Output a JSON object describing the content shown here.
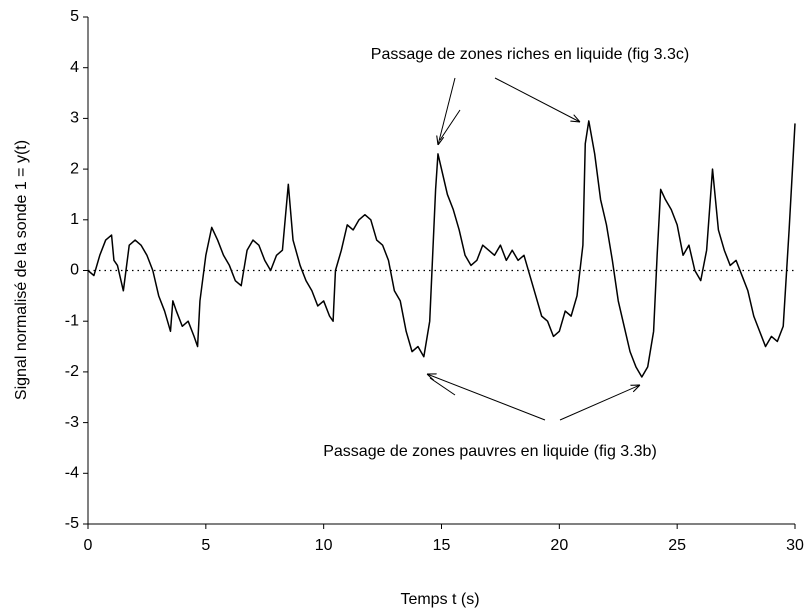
{
  "chart_data": {
    "type": "line",
    "x_label": "Temps t (s)",
    "y_label": "Signal normalisé de la sonde 1 = y(t)",
    "annotations": [
      "Passage de zones riches en liquide (fig 3.3c)",
      "Passage de zones pauvres en liquide (fig 3.3b)"
    ],
    "reference_line": 0,
    "xlim": [
      0,
      30
    ],
    "xticks": [
      0,
      5,
      10,
      15,
      20,
      25,
      30
    ],
    "ylim": [
      -5,
      5
    ],
    "yticks": [
      -5,
      -4,
      -3,
      -2,
      -1,
      0,
      1,
      2,
      3,
      4,
      5
    ],
    "series": [
      {
        "color": "#000000",
        "x": [
          0,
          0.25,
          0.5,
          0.75,
          1.0,
          1.1,
          1.25,
          1.5,
          1.75,
          2.0,
          2.25,
          2.5,
          2.75,
          3.0,
          3.25,
          3.5,
          3.6,
          3.75,
          4.0,
          4.25,
          4.5,
          4.65,
          4.75,
          5.0,
          5.25,
          5.5,
          5.75,
          6.0,
          6.25,
          6.5,
          6.75,
          7.0,
          7.25,
          7.5,
          7.75,
          8.0,
          8.25,
          8.5,
          8.7,
          9.0,
          9.25,
          9.5,
          9.75,
          10.0,
          10.25,
          10.4,
          10.5,
          10.75,
          11.0,
          11.25,
          11.5,
          11.75,
          12.0,
          12.25,
          12.5,
          12.75,
          13.0,
          13.25,
          13.5,
          13.75,
          14.0,
          14.25,
          14.5,
          14.75,
          14.85,
          15.0,
          15.25,
          15.5,
          15.75,
          16.0,
          16.25,
          16.5,
          16.75,
          17.0,
          17.25,
          17.5,
          17.75,
          18.0,
          18.25,
          18.5,
          18.75,
          19.0,
          19.25,
          19.5,
          19.75,
          20.0,
          20.25,
          20.5,
          20.75,
          21.0,
          21.1,
          21.25,
          21.5,
          21.75,
          22.0,
          22.25,
          22.5,
          22.75,
          23.0,
          23.25,
          23.5,
          23.75,
          24.0,
          24.15,
          24.3,
          24.5,
          24.75,
          25.0,
          25.25,
          25.5,
          25.75,
          26.0,
          26.25,
          26.5,
          26.75,
          27.0,
          27.25,
          27.5,
          27.75,
          28.0,
          28.25,
          28.5,
          28.75,
          29.0,
          29.25,
          29.5,
          29.75,
          30.0
        ],
        "values": [
          0,
          -0.1,
          0.3,
          0.6,
          0.7,
          0.2,
          0.1,
          -0.4,
          0.5,
          0.6,
          0.5,
          0.3,
          0,
          -0.5,
          -0.8,
          -1.2,
          -0.6,
          -0.8,
          -1.1,
          -1.0,
          -1.3,
          -1.5,
          -0.6,
          0.3,
          0.85,
          0.6,
          0.3,
          0.1,
          -0.2,
          -0.3,
          0.4,
          0.6,
          0.5,
          0.2,
          0,
          0.3,
          0.4,
          1.7,
          0.6,
          0.1,
          -0.2,
          -0.4,
          -0.7,
          -0.6,
          -0.9,
          -1.0,
          0,
          0.4,
          0.9,
          0.8,
          1.0,
          1.1,
          1.0,
          0.6,
          0.5,
          0.2,
          -0.4,
          -0.6,
          -1.2,
          -1.6,
          -1.5,
          -1.7,
          -1.0,
          1.6,
          2.3,
          2.0,
          1.5,
          1.2,
          0.8,
          0.3,
          0.1,
          0.2,
          0.5,
          0.4,
          0.3,
          0.5,
          0.2,
          0.4,
          0.2,
          0.3,
          -0.1,
          -0.5,
          -0.9,
          -1.0,
          -1.3,
          -1.2,
          -0.8,
          -0.9,
          -0.5,
          0.5,
          2.5,
          2.95,
          2.3,
          1.4,
          0.9,
          0.2,
          -0.6,
          -1.1,
          -1.6,
          -1.9,
          -2.1,
          -1.9,
          -1.2,
          0.3,
          1.6,
          1.4,
          1.2,
          0.9,
          0.3,
          0.5,
          0,
          -0.2,
          0.4,
          2.0,
          0.8,
          0.4,
          0.1,
          0.2,
          -0.1,
          -0.4,
          -0.9,
          -1.2,
          -1.5,
          -1.3,
          -1.4,
          -1.1,
          0.8,
          2.9
        ]
      }
    ]
  }
}
